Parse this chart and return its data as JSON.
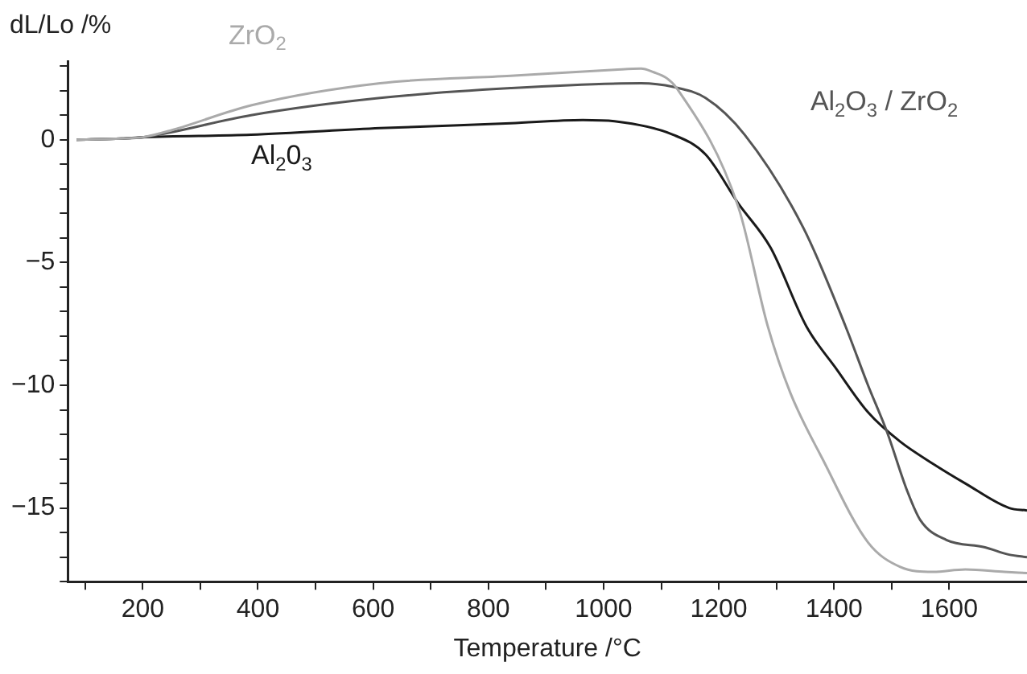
{
  "chart_data": {
    "type": "line",
    "xlabel": "Temperature /°C",
    "ylabel": "dL/Lo /%",
    "xlim": [
      70,
      1735
    ],
    "ylim": [
      -18,
      3.2
    ],
    "xticks": [
      {
        "value": 100,
        "label": null
      },
      200,
      {
        "value": 300,
        "label": null
      },
      400,
      {
        "value": 500,
        "label": null
      },
      600,
      {
        "value": 700,
        "label": null
      },
      800,
      {
        "value": 900,
        "label": null
      },
      1000,
      {
        "value": 1100,
        "label": null
      },
      1200,
      {
        "value": 1300,
        "label": null
      },
      1400,
      {
        "value": 1500,
        "label": null
      },
      1600
    ],
    "yticks": [
      {
        "value": -18,
        "label": null
      },
      {
        "value": -17,
        "label": null
      },
      {
        "value": -16,
        "label": null
      },
      {
        "value": -15,
        "label": "−15"
      },
      {
        "value": -14,
        "label": null
      },
      {
        "value": -13,
        "label": null
      },
      {
        "value": -12,
        "label": null
      },
      {
        "value": -11,
        "label": null
      },
      {
        "value": -10,
        "label": "−10"
      },
      {
        "value": -9,
        "label": null
      },
      {
        "value": -8,
        "label": null
      },
      {
        "value": -7,
        "label": null
      },
      {
        "value": -6,
        "label": null
      },
      {
        "value": -5,
        "label": "−5"
      },
      {
        "value": -4,
        "label": null
      },
      {
        "value": -3,
        "label": null
      },
      {
        "value": -2,
        "label": null
      },
      {
        "value": -1,
        "label": null
      },
      0,
      {
        "value": 1,
        "label": null
      },
      {
        "value": 2,
        "label": null
      },
      {
        "value": 3,
        "label": null
      }
    ],
    "grid": false,
    "legend": false,
    "marker": "none",
    "line_style": "solid",
    "series": [
      {
        "name": "ZrO$_{2}$",
        "color": "#aaaaaa",
        "x": [
          85,
          163,
          200,
          252,
          388,
          612,
          839,
          1019,
          1065,
          1087,
          1110,
          1127,
          1234,
          1285,
          1324,
          1380,
          1459,
          1515,
          1572,
          1628,
          1696,
          1735
        ],
        "values": [
          0,
          0.05,
          0.1,
          0.4,
          1.4,
          2.3,
          2.6,
          2.85,
          2.9,
          2.75,
          2.5,
          2.1,
          -2.75,
          -7.6,
          -10.3,
          -13,
          -16.4,
          -17.4,
          -17.6,
          -17.5,
          -17.6,
          -17.65
        ]
      },
      {
        "name": "Al$_{2}$O$_{3}$ / ZrO$_{2}$",
        "color": "#555555",
        "x": [
          85,
          163,
          200,
          388,
          612,
          839,
          1065,
          1121,
          1177,
          1245,
          1347,
          1420,
          1459,
          1492,
          1527,
          1550,
          1595,
          1662,
          1704,
          1735
        ],
        "values": [
          0,
          0.05,
          0.1,
          1.0,
          1.7,
          2.1,
          2.3,
          2.15,
          1.7,
          0.2,
          -3.6,
          -7.6,
          -10,
          -11.9,
          -14.3,
          -15.5,
          -16.3,
          -16.6,
          -16.9,
          -17.0
        ]
      },
      {
        "name": "Al$_{2}$0$_{3}$",
        "color": "#1a1a1a",
        "x": [
          85,
          163,
          200,
          388,
          612,
          839,
          964,
          1019,
          1121,
          1177,
          1234,
          1290,
          1352,
          1403,
          1459,
          1515,
          1572,
          1628,
          1704,
          1735
        ],
        "values": [
          0,
          0.05,
          0.1,
          0.2,
          0.47,
          0.67,
          0.8,
          0.75,
          0.2,
          -0.6,
          -2.6,
          -4.4,
          -7.6,
          -9.3,
          -11.1,
          -12.3,
          -13.2,
          -14.0,
          -15.0,
          -15.1
        ]
      }
    ]
  }
}
